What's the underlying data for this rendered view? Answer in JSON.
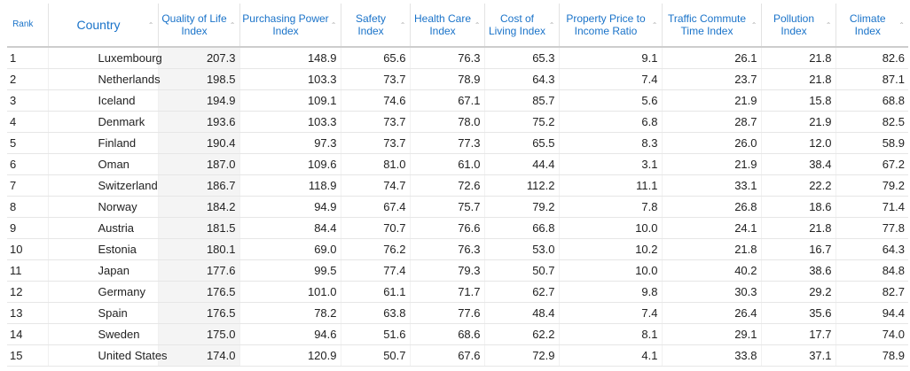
{
  "headers": [
    {
      "key": "rank",
      "label": "Rank"
    },
    {
      "key": "country",
      "label": "Country"
    },
    {
      "key": "qol",
      "label": "Quality of Life Index"
    },
    {
      "key": "ppi",
      "label": "Purchasing Power Index"
    },
    {
      "key": "safety",
      "label": "Safety Index"
    },
    {
      "key": "health",
      "label": "Health Care Index"
    },
    {
      "key": "col",
      "label": "Cost of Living Index"
    },
    {
      "key": "ppir",
      "label": "Property Price to Income Ratio"
    },
    {
      "key": "traffic",
      "label": "Traffic Commute Time Index"
    },
    {
      "key": "pollution",
      "label": "Pollution Index"
    },
    {
      "key": "climate",
      "label": "Climate Index"
    }
  ],
  "sort_icon": "sort-arrows-icon",
  "rows": [
    [
      "1",
      "Luxembourg",
      "207.3",
      "148.9",
      "65.6",
      "76.3",
      "65.3",
      "9.1",
      "26.1",
      "21.8",
      "82.6"
    ],
    [
      "2",
      "Netherlands",
      "198.5",
      "103.3",
      "73.7",
      "78.9",
      "64.3",
      "7.4",
      "23.7",
      "21.8",
      "87.1"
    ],
    [
      "3",
      "Iceland",
      "194.9",
      "109.1",
      "74.6",
      "67.1",
      "85.7",
      "5.6",
      "21.9",
      "15.8",
      "68.8"
    ],
    [
      "4",
      "Denmark",
      "193.6",
      "103.3",
      "73.7",
      "78.0",
      "75.2",
      "6.8",
      "28.7",
      "21.9",
      "82.5"
    ],
    [
      "5",
      "Finland",
      "190.4",
      "97.3",
      "73.7",
      "77.3",
      "65.5",
      "8.3",
      "26.0",
      "12.0",
      "58.9"
    ],
    [
      "6",
      "Oman",
      "187.0",
      "109.6",
      "81.0",
      "61.0",
      "44.4",
      "3.1",
      "21.9",
      "38.4",
      "67.2"
    ],
    [
      "7",
      "Switzerland",
      "186.7",
      "118.9",
      "74.7",
      "72.6",
      "112.2",
      "11.1",
      "33.1",
      "22.2",
      "79.2"
    ],
    [
      "8",
      "Norway",
      "184.2",
      "94.9",
      "67.4",
      "75.7",
      "79.2",
      "7.8",
      "26.8",
      "18.6",
      "71.4"
    ],
    [
      "9",
      "Austria",
      "181.5",
      "84.4",
      "70.7",
      "76.6",
      "66.8",
      "10.0",
      "24.1",
      "21.8",
      "77.8"
    ],
    [
      "10",
      "Estonia",
      "180.1",
      "69.0",
      "76.2",
      "76.3",
      "53.0",
      "10.2",
      "21.8",
      "16.7",
      "64.3"
    ],
    [
      "11",
      "Japan",
      "177.6",
      "99.5",
      "77.4",
      "79.3",
      "50.7",
      "10.0",
      "40.2",
      "38.6",
      "84.8"
    ],
    [
      "12",
      "Germany",
      "176.5",
      "101.0",
      "61.1",
      "71.7",
      "62.7",
      "9.8",
      "30.3",
      "29.2",
      "82.7"
    ],
    [
      "13",
      "Spain",
      "176.5",
      "78.2",
      "63.8",
      "77.6",
      "48.4",
      "7.4",
      "26.4",
      "35.6",
      "94.4"
    ],
    [
      "14",
      "Sweden",
      "175.0",
      "94.6",
      "51.6",
      "68.6",
      "62.2",
      "8.1",
      "29.1",
      "17.7",
      "74.0"
    ],
    [
      "15",
      "United States",
      "174.0",
      "120.9",
      "50.7",
      "67.6",
      "72.9",
      "4.1",
      "33.8",
      "37.1",
      "78.9"
    ]
  ]
}
